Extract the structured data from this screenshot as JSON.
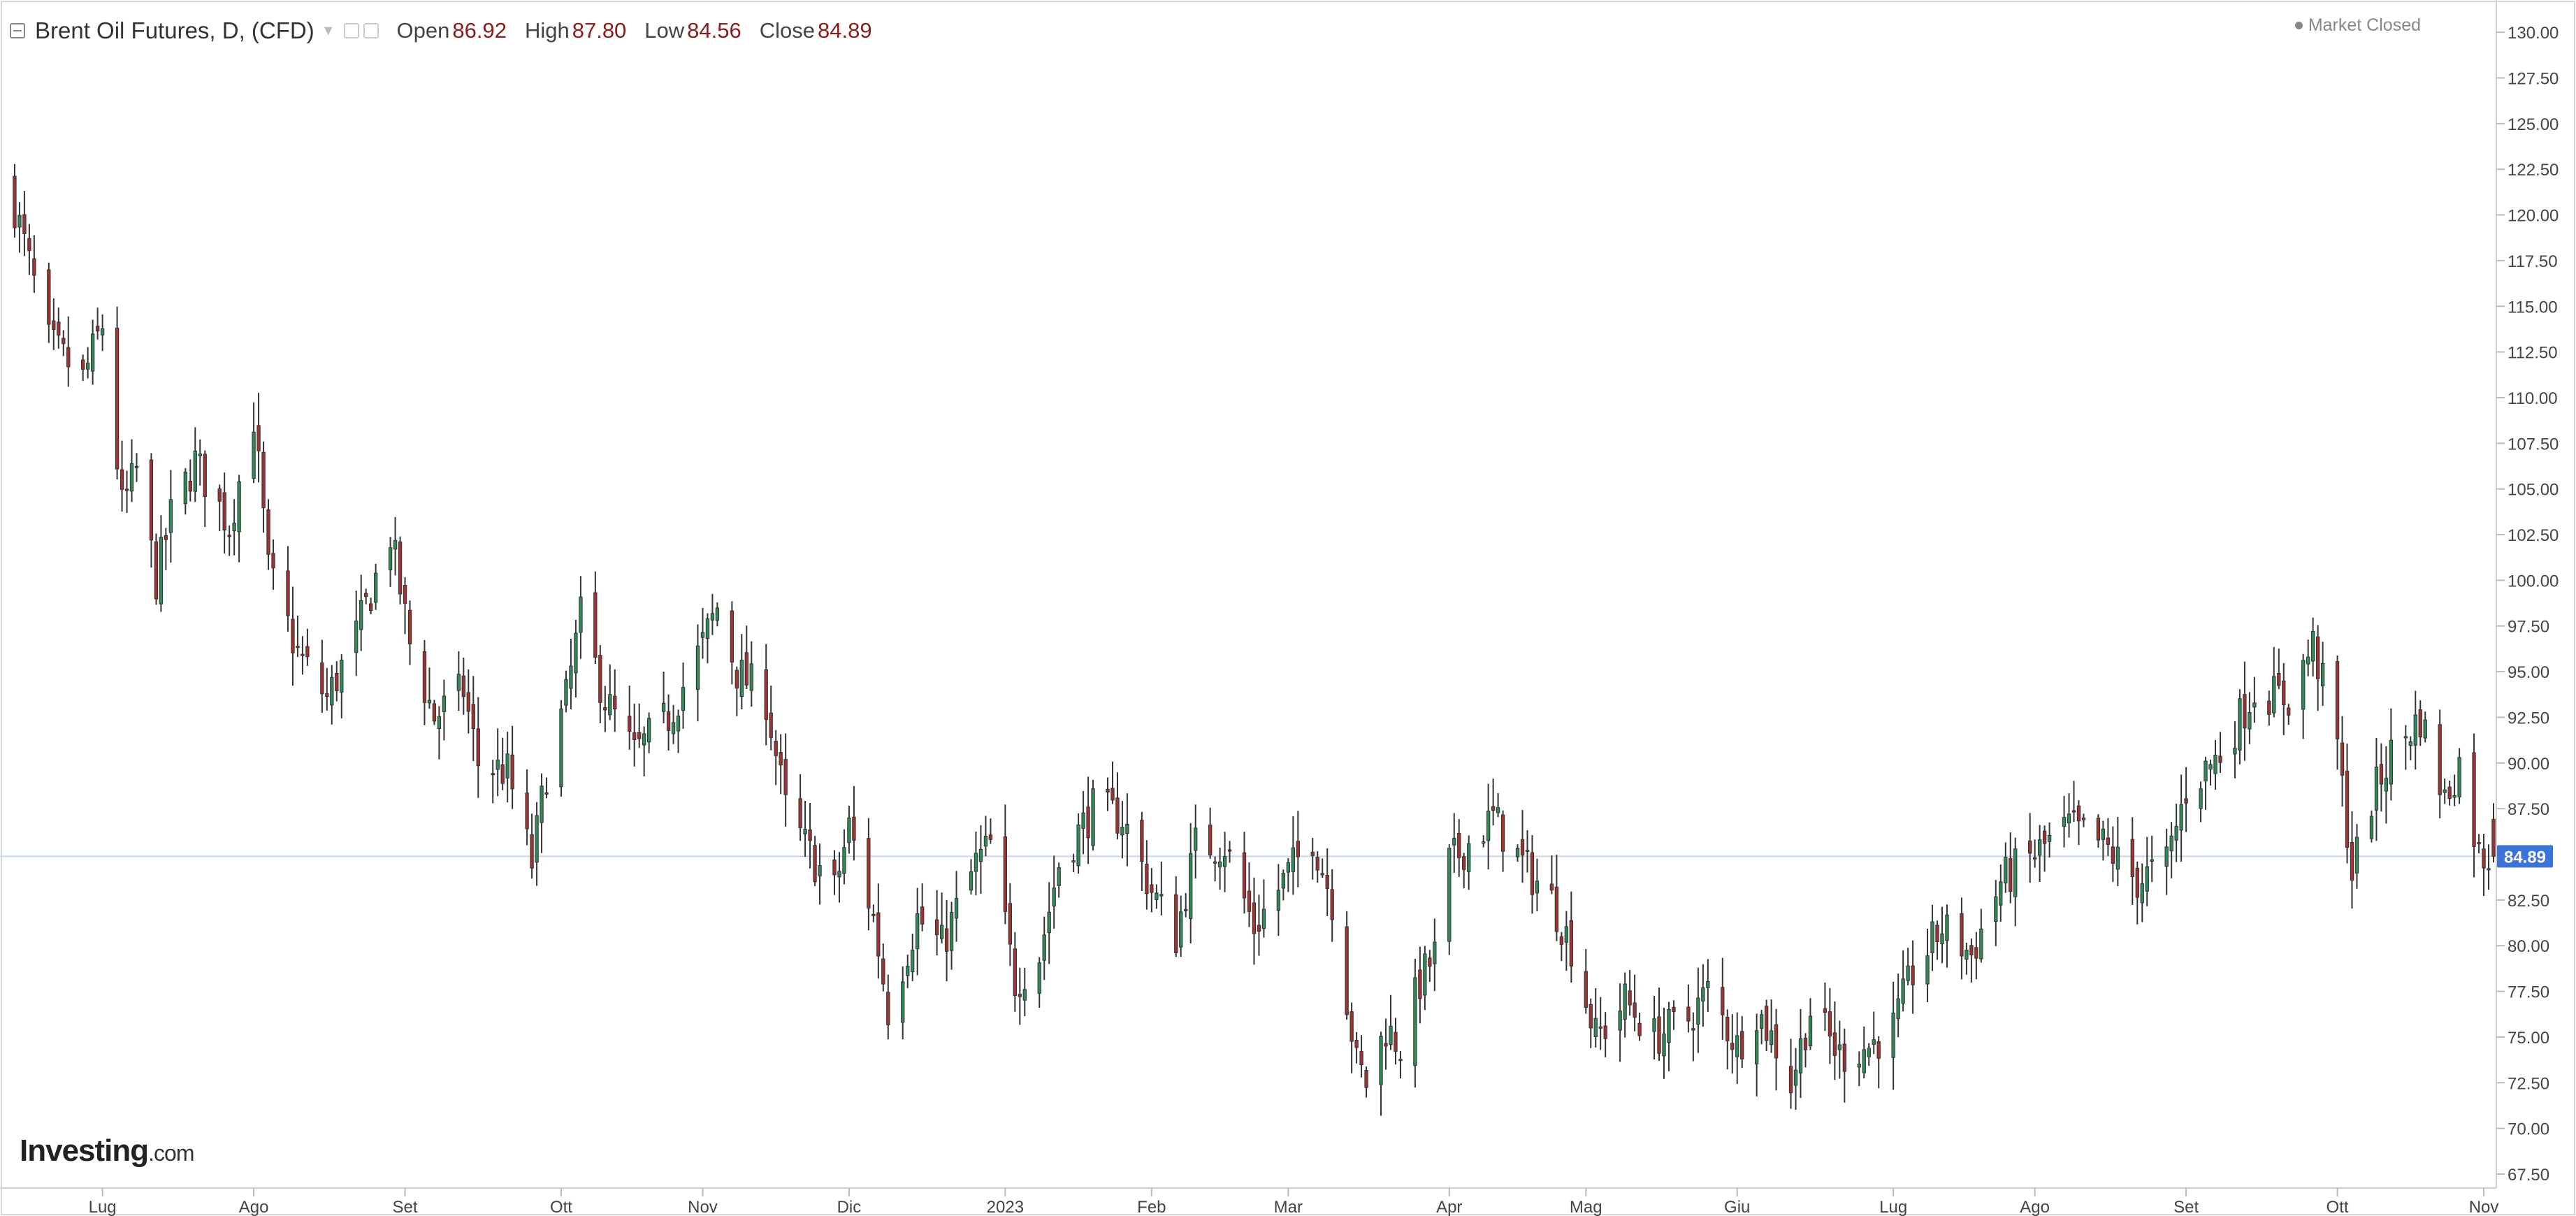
{
  "header": {
    "title": "Brent Oil Futures, D, (CFD)",
    "open_label": "Open",
    "open_value": "86.92",
    "high_label": "High",
    "high_value": "87.80",
    "low_label": "Low",
    "low_value": "84.56",
    "close_label": "Close",
    "close_value": "84.89"
  },
  "status": {
    "text": "Market Closed"
  },
  "branding": {
    "logo_main": "Investing",
    "logo_suffix": ".com"
  },
  "price_label": "84.89",
  "colors": {
    "up": "#2e8b57",
    "down": "#a03232",
    "wick": "#333333",
    "price_line": "#c5d6ec",
    "price_badge": "#3b73d9"
  },
  "chart_data": {
    "type": "candlestick",
    "title": "Brent Oil Futures, D, (CFD)",
    "xlabel": "",
    "ylabel": "",
    "ylim": [
      67.5,
      131.0
    ],
    "y_ticks": [
      "67.50",
      "70.00",
      "72.50",
      "75.00",
      "77.50",
      "80.00",
      "82.50",
      "85.00",
      "87.50",
      "90.00",
      "92.50",
      "95.00",
      "97.50",
      "100.00",
      "102.50",
      "105.00",
      "107.50",
      "110.00",
      "112.50",
      "115.00",
      "117.50",
      "120.00",
      "122.50",
      "125.00",
      "127.50",
      "130.00"
    ],
    "x_tick_labels": [
      "Lug",
      "Ago",
      "Set",
      "Ott",
      "Nov",
      "Dic",
      "2023",
      "Feb",
      "Mar",
      "Apr",
      "Mag",
      "Giu",
      "Lug",
      "Ago",
      "Set",
      "Ott",
      "Nov"
    ],
    "x_tick_dates": [
      "2022-07-01",
      "2022-08-01",
      "2022-09-01",
      "2022-10-03",
      "2022-11-01",
      "2022-12-01",
      "2023-01-02",
      "2023-02-01",
      "2023-03-01",
      "2023-04-03",
      "2023-05-01",
      "2023-06-01",
      "2023-07-03",
      "2023-08-01",
      "2023-09-01",
      "2023-10-02",
      "2023-11-01"
    ],
    "x_range": [
      "2022-06-10",
      "2023-11-03"
    ],
    "grid": false,
    "last_price": 84.89,
    "anchors": [
      {
        "date": "2022-06-13",
        "close": 120.5
      },
      {
        "date": "2022-06-20",
        "close": 113.0
      },
      {
        "date": "2022-06-27",
        "close": 111.0
      },
      {
        "date": "2022-07-01",
        "close": 114.0
      },
      {
        "date": "2022-07-05",
        "close": 104.0
      },
      {
        "date": "2022-07-08",
        "close": 106.0
      },
      {
        "date": "2022-07-12",
        "close": 100.0
      },
      {
        "date": "2022-07-15",
        "close": 103.5
      },
      {
        "date": "2022-07-20",
        "close": 106.5
      },
      {
        "date": "2022-07-27",
        "close": 103.0
      },
      {
        "date": "2022-08-01",
        "close": 109.0
      },
      {
        "date": "2022-08-04",
        "close": 100.5
      },
      {
        "date": "2022-08-10",
        "close": 96.0
      },
      {
        "date": "2022-08-16",
        "close": 93.5
      },
      {
        "date": "2022-08-22",
        "close": 97.0
      },
      {
        "date": "2022-08-29",
        "close": 102.5
      },
      {
        "date": "2022-09-02",
        "close": 96.5
      },
      {
        "date": "2022-09-07",
        "close": 92.5
      },
      {
        "date": "2022-09-13",
        "close": 94.0
      },
      {
        "date": "2022-09-16",
        "close": 90.0
      },
      {
        "date": "2022-09-22",
        "close": 89.5
      },
      {
        "date": "2022-09-27",
        "close": 84.5
      },
      {
        "date": "2022-09-30",
        "close": 89.5
      },
      {
        "date": "2022-10-04",
        "close": 93.5
      },
      {
        "date": "2022-10-07",
        "close": 98.0
      },
      {
        "date": "2022-10-12",
        "close": 93.5
      },
      {
        "date": "2022-10-18",
        "close": 90.5
      },
      {
        "date": "2022-10-25",
        "close": 92.5
      },
      {
        "date": "2022-11-01",
        "close": 96.5
      },
      {
        "date": "2022-11-04",
        "close": 98.5
      },
      {
        "date": "2022-11-08",
        "close": 95.0
      },
      {
        "date": "2022-11-14",
        "close": 93.5
      },
      {
        "date": "2022-11-18",
        "close": 87.5
      },
      {
        "date": "2022-11-23",
        "close": 85.0
      },
      {
        "date": "2022-11-28",
        "close": 83.0
      },
      {
        "date": "2022-12-01",
        "close": 86.5
      },
      {
        "date": "2022-12-06",
        "close": 81.5
      },
      {
        "date": "2022-12-09",
        "close": 76.5
      },
      {
        "date": "2022-12-15",
        "close": 81.5
      },
      {
        "date": "2022-12-20",
        "close": 80.0
      },
      {
        "date": "2022-12-27",
        "close": 84.5
      },
      {
        "date": "2022-12-30",
        "close": 85.5
      },
      {
        "date": "2023-01-04",
        "close": 78.0
      },
      {
        "date": "2023-01-09",
        "close": 79.5
      },
      {
        "date": "2023-01-13",
        "close": 84.5
      },
      {
        "date": "2023-01-20",
        "close": 87.5
      },
      {
        "date": "2023-01-26",
        "close": 87.0
      },
      {
        "date": "2023-02-01",
        "close": 83.0
      },
      {
        "date": "2023-02-06",
        "close": 80.5
      },
      {
        "date": "2023-02-10",
        "close": 85.5
      },
      {
        "date": "2023-02-16",
        "close": 85.5
      },
      {
        "date": "2023-02-22",
        "close": 81.0
      },
      {
        "date": "2023-02-28",
        "close": 83.5
      },
      {
        "date": "2023-03-06",
        "close": 86.0
      },
      {
        "date": "2023-03-10",
        "close": 82.5
      },
      {
        "date": "2023-03-15",
        "close": 73.5
      },
      {
        "date": "2023-03-17",
        "close": 72.5
      },
      {
        "date": "2023-03-21",
        "close": 75.5
      },
      {
        "date": "2023-03-24",
        "close": 74.5
      },
      {
        "date": "2023-03-28",
        "close": 78.0
      },
      {
        "date": "2023-03-31",
        "close": 79.5
      },
      {
        "date": "2023-04-03",
        "close": 84.5
      },
      {
        "date": "2023-04-12",
        "close": 87.0
      },
      {
        "date": "2023-04-18",
        "close": 84.5
      },
      {
        "date": "2023-04-24",
        "close": 82.5
      },
      {
        "date": "2023-04-28",
        "close": 80.0
      },
      {
        "date": "2023-05-03",
        "close": 75.0
      },
      {
        "date": "2023-05-05",
        "close": 75.5
      },
      {
        "date": "2023-05-09",
        "close": 77.0
      },
      {
        "date": "2023-05-15",
        "close": 75.0
      },
      {
        "date": "2023-05-22",
        "close": 76.0
      },
      {
        "date": "2023-05-26",
        "close": 77.5
      },
      {
        "date": "2023-06-01",
        "close": 74.5
      },
      {
        "date": "2023-06-05",
        "close": 76.5
      },
      {
        "date": "2023-06-09",
        "close": 74.5
      },
      {
        "date": "2023-06-12",
        "close": 72.5
      },
      {
        "date": "2023-06-16",
        "close": 76.5
      },
      {
        "date": "2023-06-22",
        "close": 74.0
      },
      {
        "date": "2023-06-28",
        "close": 74.5
      },
      {
        "date": "2023-07-03",
        "close": 75.5
      },
      {
        "date": "2023-07-07",
        "close": 78.5
      },
      {
        "date": "2023-07-13",
        "close": 81.0
      },
      {
        "date": "2023-07-19",
        "close": 79.5
      },
      {
        "date": "2023-07-25",
        "close": 83.5
      },
      {
        "date": "2023-08-01",
        "close": 85.0
      },
      {
        "date": "2023-08-08",
        "close": 86.5
      },
      {
        "date": "2023-08-15",
        "close": 85.5
      },
      {
        "date": "2023-08-22",
        "close": 83.5
      },
      {
        "date": "2023-08-28",
        "close": 84.5
      },
      {
        "date": "2023-09-01",
        "close": 88.5
      },
      {
        "date": "2023-09-08",
        "close": 90.5
      },
      {
        "date": "2023-09-15",
        "close": 94.0
      },
      {
        "date": "2023-09-22",
        "close": 93.5
      },
      {
        "date": "2023-09-27",
        "close": 96.5
      },
      {
        "date": "2023-10-02",
        "close": 91.0
      },
      {
        "date": "2023-10-05",
        "close": 84.0
      },
      {
        "date": "2023-10-09",
        "close": 88.0
      },
      {
        "date": "2023-10-13",
        "close": 90.5
      },
      {
        "date": "2023-10-19",
        "close": 92.5
      },
      {
        "date": "2023-10-24",
        "close": 88.0
      },
      {
        "date": "2023-10-27",
        "close": 90.0
      },
      {
        "date": "2023-10-31",
        "close": 85.0
      },
      {
        "date": "2023-11-03",
        "close": 84.89
      }
    ],
    "last_bar": {
      "date": "2023-11-03",
      "open": 86.92,
      "high": 87.8,
      "low": 84.56,
      "close": 84.89
    }
  }
}
